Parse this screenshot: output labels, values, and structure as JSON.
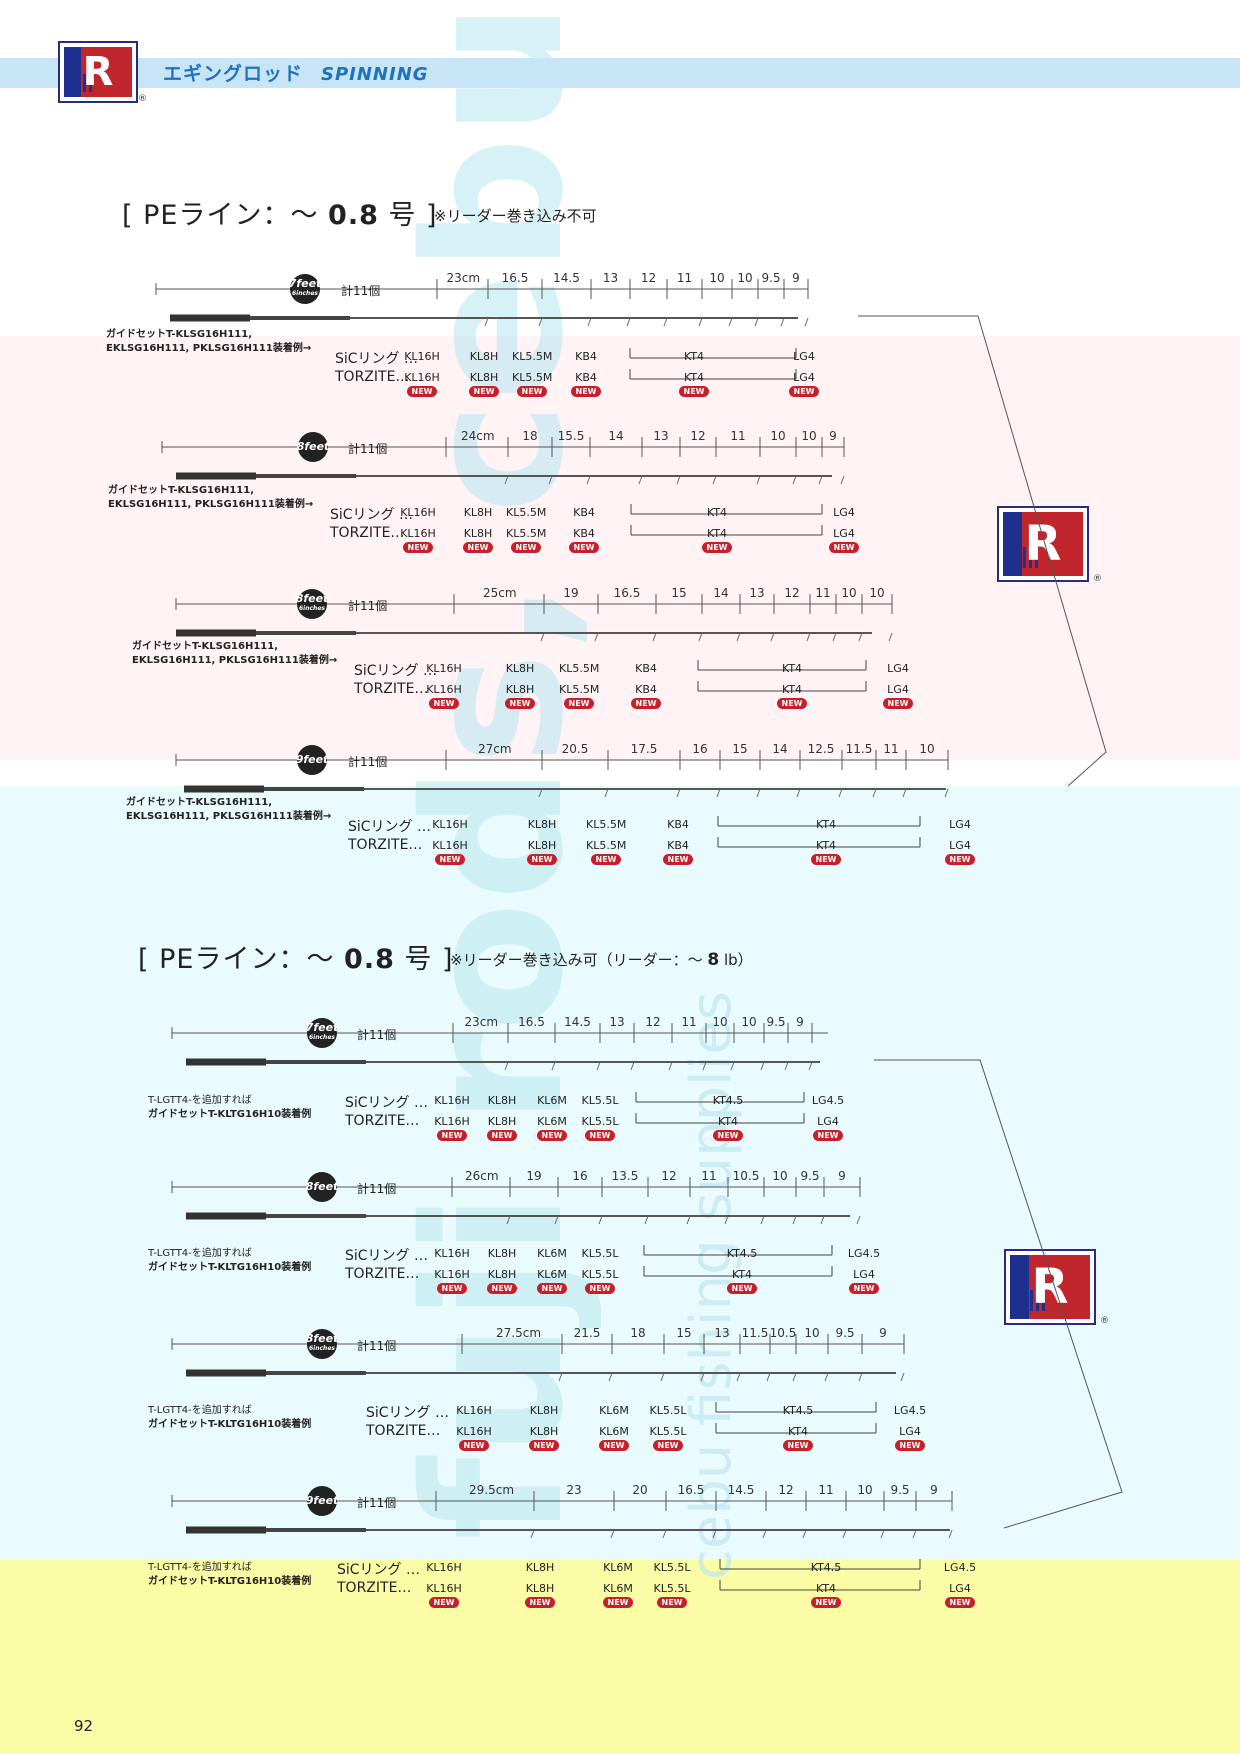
{
  "header": {
    "title_ja": "エギングロッド",
    "title_en": "SPINNING"
  },
  "logo": {
    "letter": "R",
    "reg": "®"
  },
  "watermark": "fuji rods, cebu fishing supplies",
  "sections": [
    {
      "title_pre": "[ PEライン：～ ",
      "title_num": "0.8",
      "title_post": " 号 ]",
      "note": "※リーダー巻き込み不可",
      "rods": [
        {
          "feet": "7",
          "inch": "6",
          "count": "計11個",
          "spacing": [
            "23cm",
            "16.5",
            "14.5",
            "13",
            "12",
            "11",
            "10",
            "10",
            "9.5",
            "9"
          ],
          "guide_lines": [
            "ガイドセットT-KLSG16H111,",
            "EKLSG16H111, PKLSG16H111装着例→"
          ],
          "sic_label": "SiCリング …",
          "torzite_label": "TORZITE…",
          "sic": [
            "KL16H",
            "KL8H",
            "KL5.5M",
            "KB4",
            "KT4",
            "LG4"
          ],
          "torzite": [
            "KL16H",
            "KL8H",
            "KL5.5M",
            "KB4",
            "KT4",
            "LG4"
          ],
          "new": "NEW"
        },
        {
          "feet": "8",
          "inch": "",
          "count": "計11個",
          "spacing": [
            "24cm",
            "18",
            "15.5",
            "14",
            "13",
            "12",
            "11",
            "10",
            "10",
            "9"
          ],
          "guide_lines": [
            "ガイドセットT-KLSG16H111,",
            "EKLSG16H111, PKLSG16H111装着例→"
          ],
          "sic_label": "SiCリング …",
          "torzite_label": "TORZITE…",
          "sic": [
            "KL16H",
            "KL8H",
            "KL5.5M",
            "KB4",
            "KT4",
            "LG4"
          ],
          "torzite": [
            "KL16H",
            "KL8H",
            "KL5.5M",
            "KB4",
            "KT4",
            "LG4"
          ],
          "new": "NEW"
        },
        {
          "feet": "8",
          "inch": "6",
          "count": "計11個",
          "spacing": [
            "25cm",
            "19",
            "16.5",
            "15",
            "14",
            "13",
            "12",
            "11",
            "10",
            "10"
          ],
          "guide_lines": [
            "ガイドセットT-KLSG16H111,",
            "EKLSG16H111, PKLSG16H111装着例→"
          ],
          "sic_label": "SiCリング …",
          "torzite_label": "TORZITE…",
          "sic": [
            "KL16H",
            "KL8H",
            "KL5.5M",
            "KB4",
            "KT4",
            "LG4"
          ],
          "torzite": [
            "KL16H",
            "KL8H",
            "KL5.5M",
            "KB4",
            "KT4",
            "LG4"
          ],
          "new": "NEW"
        },
        {
          "feet": "9",
          "inch": "",
          "count": "計11個",
          "spacing": [
            "27cm",
            "20.5",
            "17.5",
            "16",
            "15",
            "14",
            "12.5",
            "11.5",
            "11",
            "10"
          ],
          "guide_lines": [
            "ガイドセットT-KLSG16H111,",
            "EKLSG16H111, PKLSG16H111装着例→"
          ],
          "sic_label": "SiCリング …",
          "torzite_label": "TORZITE…",
          "sic": [
            "KL16H",
            "KL8H",
            "KL5.5M",
            "KB4",
            "KT4",
            "LG4"
          ],
          "torzite": [
            "KL16H",
            "KL8H",
            "KL5.5M",
            "KB4",
            "KT4",
            "LG4"
          ],
          "new": "NEW"
        }
      ]
    },
    {
      "title_pre": "[ PEライン：～ ",
      "title_num": "0.8",
      "title_post": " 号 ]",
      "note_pre": "※リーダー巻き込み可（リーダー：～ ",
      "note_num": "8",
      "note_post": " lb）",
      "rods": [
        {
          "feet": "7",
          "inch": "6",
          "count": "計11個",
          "spacing": [
            "23cm",
            "16.5",
            "14.5",
            "13",
            "12",
            "11",
            "10",
            "10",
            "9.5",
            "9"
          ],
          "guide_lines": [
            "T-LGTT4-を追加すれば",
            "ガイドセットT-KLTG16H10装着例"
          ],
          "sic_label": "SiCリング …",
          "torzite_label": "TORZITE…",
          "sic": [
            "KL16H",
            "KL8H",
            "KL6M",
            "KL5.5L",
            "KT4.5",
            "LG4.5"
          ],
          "torzite": [
            "KL16H",
            "KL8H",
            "KL6M",
            "KL5.5L",
            "KT4",
            "LG4"
          ],
          "new": "NEW"
        },
        {
          "feet": "8",
          "inch": "",
          "count": "計11個",
          "spacing": [
            "26cm",
            "19",
            "16",
            "13.5",
            "12",
            "11",
            "10.5",
            "10",
            "9.5",
            "9"
          ],
          "guide_lines": [
            "T-LGTT4-を追加すれば",
            "ガイドセットT-KLTG16H10装着例"
          ],
          "sic_label": "SiCリング …",
          "torzite_label": "TORZITE…",
          "sic": [
            "KL16H",
            "KL8H",
            "KL6M",
            "KL5.5L",
            "KT4.5",
            "LG4.5"
          ],
          "torzite": [
            "KL16H",
            "KL8H",
            "KL6M",
            "KL5.5L",
            "KT4",
            "LG4"
          ],
          "new": "NEW"
        },
        {
          "feet": "8",
          "inch": "6",
          "count": "計11個",
          "spacing": [
            "27.5cm",
            "21.5",
            "18",
            "15",
            "13",
            "11.5",
            "10.5",
            "10",
            "9.5",
            "9"
          ],
          "guide_lines": [
            "T-LGTT4-を追加すれば",
            "ガイドセットT-KLTG16H10装着例"
          ],
          "sic_label": "SiCリング …",
          "torzite_label": "TORZITE…",
          "sic": [
            "KL16H",
            "KL8H",
            "KL6M",
            "KL5.5L",
            "KT4.5",
            "LG4.5"
          ],
          "torzite": [
            "KL16H",
            "KL8H",
            "KL6M",
            "KL5.5L",
            "KT4",
            "LG4"
          ],
          "new": "NEW"
        },
        {
          "feet": "9",
          "inch": "",
          "count": "計11個",
          "spacing": [
            "29.5cm",
            "23",
            "20",
            "16.5",
            "14.5",
            "12",
            "11",
            "10",
            "9.5",
            "9"
          ],
          "guide_lines": [
            "T-LGTT4-を追加すれば",
            "ガイドセットT-KLTG16H10装着例"
          ],
          "sic_label": "SiCリング …",
          "torzite_label": "TORZITE…",
          "sic": [
            "KL16H",
            "KL8H",
            "KL6M",
            "KL5.5L",
            "KT4.5",
            "LG4.5"
          ],
          "torzite": [
            "KL16H",
            "KL8H",
            "KL6M",
            "KL5.5L",
            "KT4",
            "LG4"
          ],
          "new": "NEW"
        }
      ]
    }
  ],
  "page_number": "92"
}
